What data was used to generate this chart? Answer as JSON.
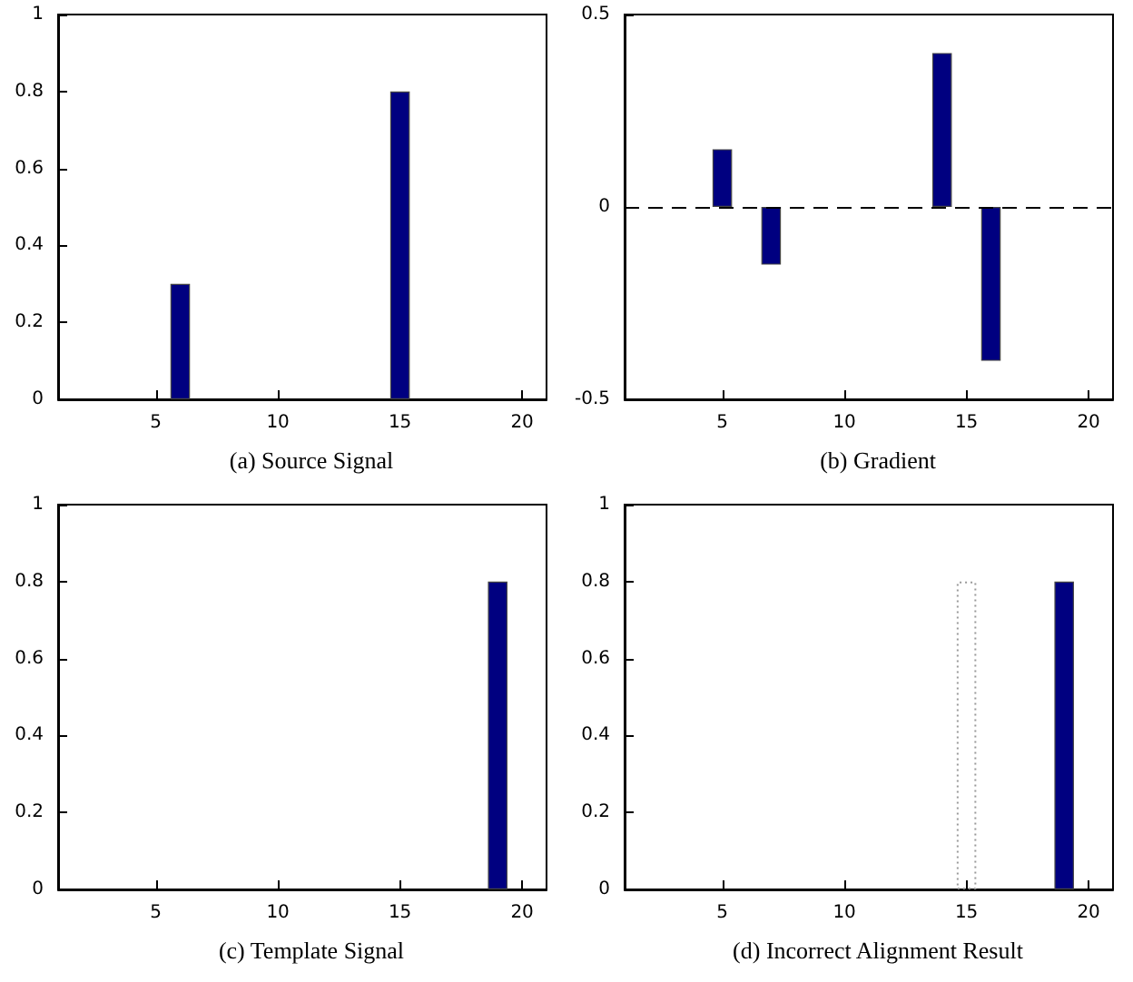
{
  "chart_data": [
    {
      "type": "bar",
      "title": "(a) Source Signal",
      "xlim": [
        1,
        21
      ],
      "xticks": [
        5,
        10,
        15,
        20
      ],
      "ylim": [
        0,
        1
      ],
      "yticks": [
        0,
        0.2,
        0.4,
        0.6,
        0.8,
        1
      ],
      "series": [
        {
          "color": "#000080",
          "x": [
            6,
            15
          ],
          "values": [
            0.3,
            0.8
          ]
        }
      ]
    },
    {
      "type": "bar",
      "title": "(b) Gradient",
      "xlim": [
        1,
        21
      ],
      "xticks": [
        5,
        10,
        15,
        20
      ],
      "ylim": [
        -0.5,
        0.5
      ],
      "yticks": [
        -0.5,
        0,
        0.5
      ],
      "series": [
        {
          "color": "#000080",
          "x": [
            5,
            7,
            14,
            16
          ],
          "values": [
            0.15,
            -0.15,
            0.4,
            -0.4
          ]
        }
      ],
      "ref_lines": [
        {
          "axis": "y",
          "value": 0,
          "color": "#000000",
          "line_style": "dashed"
        }
      ]
    },
    {
      "type": "bar",
      "title": "(c) Template Signal",
      "xlim": [
        1,
        21
      ],
      "xticks": [
        5,
        10,
        15,
        20
      ],
      "ylim": [
        0,
        1
      ],
      "yticks": [
        0,
        0.2,
        0.4,
        0.6,
        0.8,
        1
      ],
      "series": [
        {
          "color": "#000080",
          "x": [
            19
          ],
          "values": [
            0.8
          ]
        }
      ]
    },
    {
      "type": "bar",
      "title": "(d) Incorrect Alignment Result",
      "xlim": [
        1,
        21
      ],
      "xticks": [
        5,
        10,
        15,
        20
      ],
      "ylim": [
        0,
        1
      ],
      "yticks": [
        0,
        0.2,
        0.4,
        0.6,
        0.8,
        1
      ],
      "series": [
        {
          "color": "#000080",
          "x": [
            19
          ],
          "values": [
            0.8
          ]
        },
        {
          "color": "#999999",
          "line_style": "dotted",
          "x": [
            15
          ],
          "values": [
            0.8
          ]
        }
      ]
    }
  ]
}
